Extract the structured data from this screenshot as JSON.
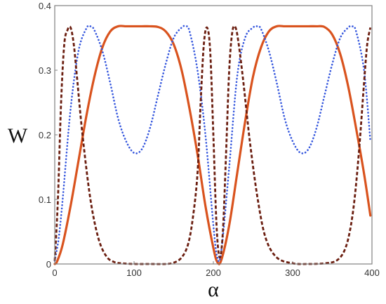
{
  "chart_data": {
    "type": "line",
    "title": "",
    "xlabel": "α",
    "ylabel": "W",
    "xlim": [
      0,
      400
    ],
    "ylim": [
      0,
      0.4
    ],
    "grid": false,
    "legend": "none",
    "xticks": [
      "0",
      "100",
      "200",
      "300",
      "400"
    ],
    "yticks": [
      "0",
      "0.1",
      "0.2",
      "0.3",
      "0.4"
    ],
    "series": [
      {
        "style": "solid",
        "color": "#d9531e",
        "x": [
          0,
          3,
          10,
          20,
          30,
          40,
          50,
          60,
          70,
          80,
          90,
          100,
          110,
          120,
          130,
          140,
          150,
          160,
          170,
          180,
          190,
          200,
          205,
          210,
          220,
          230,
          240,
          250,
          260,
          270,
          280,
          290,
          300,
          310,
          320,
          330,
          340,
          350,
          360,
          370,
          380,
          390,
          398
        ],
        "y": [
          0,
          0.004,
          0.03,
          0.09,
          0.16,
          0.23,
          0.29,
          0.335,
          0.36,
          0.368,
          0.368,
          0.368,
          0.368,
          0.368,
          0.367,
          0.36,
          0.34,
          0.3,
          0.24,
          0.17,
          0.09,
          0.025,
          0.003,
          0.006,
          0.06,
          0.14,
          0.22,
          0.29,
          0.335,
          0.36,
          0.368,
          0.368,
          0.368,
          0.368,
          0.368,
          0.368,
          0.367,
          0.355,
          0.325,
          0.275,
          0.21,
          0.14,
          0.075
        ]
      },
      {
        "style": "dotted",
        "color": "#3355dd",
        "x": [
          0,
          5,
          10,
          20,
          30,
          40,
          45,
          50,
          60,
          70,
          80,
          90,
          100,
          110,
          120,
          130,
          140,
          150,
          160,
          165,
          170,
          180,
          190,
          200,
          205,
          210,
          220,
          230,
          240,
          250,
          255,
          260,
          270,
          280,
          290,
          300,
          310,
          320,
          330,
          340,
          350,
          360,
          370,
          375,
          380,
          390,
          398
        ],
        "y": [
          0.005,
          0.04,
          0.1,
          0.24,
          0.33,
          0.365,
          0.368,
          0.362,
          0.33,
          0.28,
          0.225,
          0.19,
          0.172,
          0.178,
          0.21,
          0.26,
          0.31,
          0.35,
          0.366,
          0.368,
          0.36,
          0.3,
          0.2,
          0.06,
          0.01,
          0.02,
          0.15,
          0.29,
          0.35,
          0.366,
          0.368,
          0.364,
          0.33,
          0.28,
          0.225,
          0.19,
          0.172,
          0.178,
          0.21,
          0.26,
          0.31,
          0.35,
          0.366,
          0.368,
          0.36,
          0.3,
          0.19
        ]
      },
      {
        "style": "dashed",
        "color": "#6b1e10",
        "x": [
          0,
          4,
          8,
          12,
          16,
          20,
          24,
          28,
          35,
          45,
          55,
          65,
          75,
          85,
          100,
          120,
          140,
          150,
          160,
          168,
          174,
          180,
          184,
          188,
          192,
          196,
          200,
          204,
          208,
          212,
          216,
          220,
          224,
          228,
          232,
          238,
          246,
          256,
          266,
          280,
          300,
          320,
          340,
          355,
          365,
          372,
          378,
          384,
          390,
          394,
          398
        ],
        "y": [
          0.005,
          0.1,
          0.25,
          0.34,
          0.362,
          0.366,
          0.34,
          0.29,
          0.2,
          0.1,
          0.04,
          0.012,
          0.003,
          0.001,
          0,
          0,
          0,
          0.002,
          0.01,
          0.03,
          0.07,
          0.14,
          0.25,
          0.34,
          0.366,
          0.33,
          0.2,
          0.06,
          0.01,
          0.05,
          0.17,
          0.3,
          0.36,
          0.366,
          0.34,
          0.28,
          0.19,
          0.1,
          0.04,
          0.01,
          0.001,
          0,
          0.001,
          0.005,
          0.02,
          0.05,
          0.1,
          0.18,
          0.28,
          0.34,
          0.366
        ]
      }
    ]
  }
}
